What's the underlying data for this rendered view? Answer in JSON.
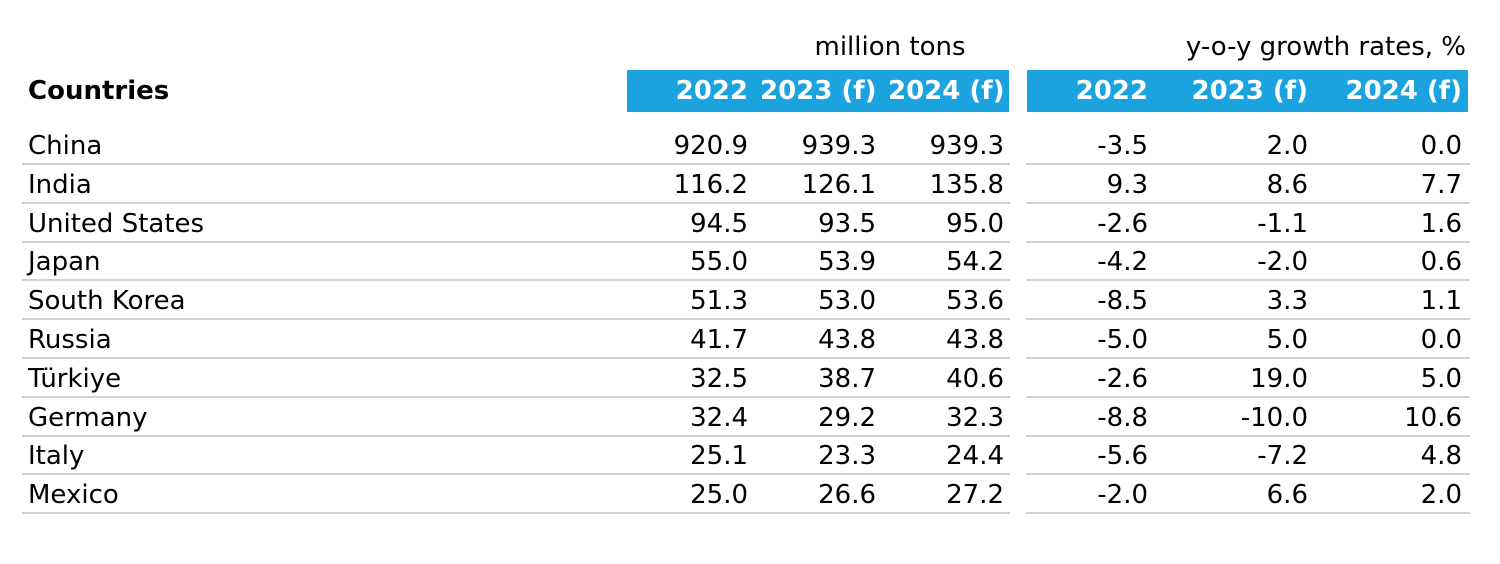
{
  "chart_data": {
    "type": "table",
    "title": "",
    "row_header": "Countries",
    "groups": [
      {
        "label": "million tons",
        "columns": [
          "2022",
          "2023 (f)",
          "2024 (f)"
        ]
      },
      {
        "label": "y-o-y growth rates, %",
        "columns": [
          "2022",
          "2023 (f)",
          "2024 (f)"
        ]
      }
    ],
    "rows": [
      {
        "country": "China",
        "values": [
          "920.9",
          "939.3",
          "939.3",
          "-3.5",
          "2.0",
          "0.0"
        ]
      },
      {
        "country": "India",
        "values": [
          "116.2",
          "126.1",
          "135.8",
          "9.3",
          "8.6",
          "7.7"
        ]
      },
      {
        "country": "United States",
        "values": [
          "94.5",
          "93.5",
          "95.0",
          "-2.6",
          "-1.1",
          "1.6"
        ]
      },
      {
        "country": "Japan",
        "values": [
          "55.0",
          "53.9",
          "54.2",
          "-4.2",
          "-2.0",
          "0.6"
        ]
      },
      {
        "country": "South Korea",
        "values": [
          "51.3",
          "53.0",
          "53.6",
          "-8.5",
          "3.3",
          "1.1"
        ]
      },
      {
        "country": "Russia",
        "values": [
          "41.7",
          "43.8",
          "43.8",
          "-5.0",
          "5.0",
          "0.0"
        ]
      },
      {
        "country": "Türkiye",
        "values": [
          "32.5",
          "38.7",
          "40.6",
          "-2.6",
          "19.0",
          "5.0"
        ]
      },
      {
        "country": "Germany",
        "values": [
          "32.4",
          "29.2",
          "32.3",
          "-8.8",
          "-10.0",
          "10.6"
        ]
      },
      {
        "country": "Italy",
        "values": [
          "25.1",
          "23.3",
          "24.4",
          "-5.6",
          "-7.2",
          "4.8"
        ]
      },
      {
        "country": "Mexico",
        "values": [
          "25.0",
          "26.6",
          "27.2",
          "-2.0",
          "6.6",
          "2.0"
        ]
      }
    ]
  },
  "colors": {
    "header_band": "#1aa3df",
    "row_line": "#c8d2da"
  }
}
